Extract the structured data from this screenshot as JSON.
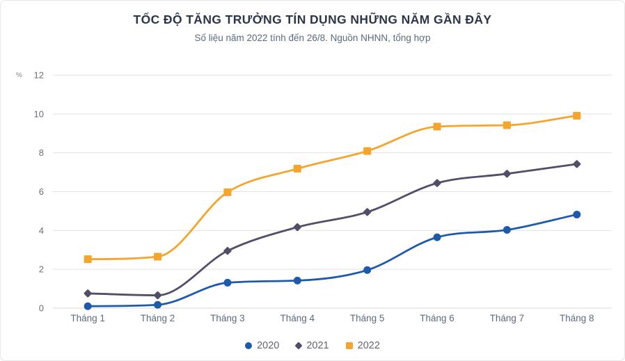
{
  "chart_data": {
    "type": "line",
    "title": "TỐC ĐỘ TĂNG TRƯỞNG TÍN DỤNG NHỮNG NĂM GẦN ĐÂY",
    "subtitle": "Số liệu năm 2022 tính đến 26/8. Nguồn NHNN, tổng hợp",
    "ylabel": "%",
    "xlabel": "",
    "categories": [
      "Tháng 1",
      "Tháng 2",
      "Tháng 3",
      "Tháng 4",
      "Tháng 5",
      "Tháng 6",
      "Tháng 7",
      "Tháng 8"
    ],
    "series": [
      {
        "name": "2020",
        "marker": "circle",
        "color": "#1E5AAB",
        "values": [
          0.1,
          0.17,
          1.31,
          1.42,
          1.96,
          3.65,
          4.03,
          4.82
        ]
      },
      {
        "name": "2021",
        "marker": "diamond",
        "color": "#514E68",
        "values": [
          0.76,
          0.66,
          2.95,
          4.17,
          4.95,
          6.44,
          6.92,
          7.42
        ]
      },
      {
        "name": "2022",
        "marker": "square",
        "color": "#F5A42C",
        "values": [
          2.52,
          2.65,
          5.97,
          7.18,
          8.09,
          9.35,
          9.42,
          9.91
        ]
      }
    ],
    "y_ticks": [
      0,
      2,
      4,
      6,
      8,
      10,
      12
    ],
    "ylim": [
      0,
      12
    ],
    "grid": true,
    "legend_position": "bottom",
    "colors": {
      "grid_line": "#e2e2e2",
      "zero_line": "#d9d9d9",
      "title_text": "#2b3648",
      "subtitle_text": "#5a6b7d",
      "axis_text": "#6e6e78"
    }
  }
}
